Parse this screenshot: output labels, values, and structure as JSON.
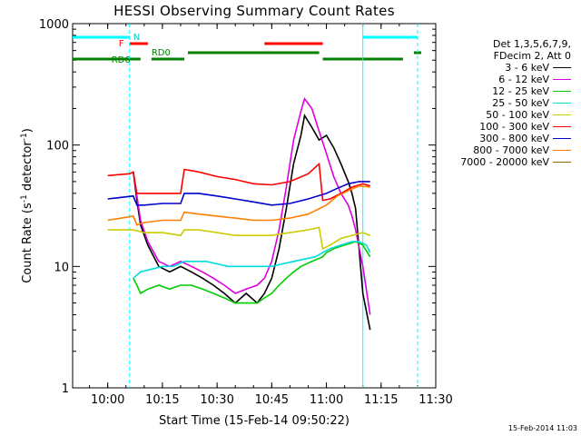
{
  "chart_data": {
    "type": "line",
    "title": "HESSI Observing Summary Count Rates",
    "xlabel": "Start Time (15-Feb-14 09:50:22)",
    "ylabel": "Count Rate (s",
    "ylabel_sup": "-1",
    "ylabel_unit": " detector",
    "ylabel_sup2": "-1",
    "ylabel_close": ")",
    "yscale": "log",
    "ylim": [
      1,
      1000
    ],
    "xlim": [
      "09:50:22",
      "11:30:00"
    ],
    "x_ticks": [
      "10:00",
      "10:15",
      "10:30",
      "10:45",
      "11:00",
      "11:15",
      "11:30"
    ],
    "y_ticks": [
      "1",
      "10",
      "100",
      "1000"
    ],
    "legend_header": [
      "Det 1,3,5,6,7,9,",
      "FDecim 2, Att 0"
    ],
    "legend_placement": "right",
    "series": [
      {
        "name": "3 - 6 keV",
        "color": "#000000",
        "x": [
          "10:07",
          "10:08",
          "10:09",
          "10:11",
          "10:14",
          "10:17",
          "10:20",
          "10:23",
          "10:26",
          "10:29",
          "10:32",
          "10:35",
          "10:38",
          "10:41",
          "10:43",
          "10:45",
          "10:47",
          "10:49",
          "10:51",
          "10:53",
          "10:54",
          "10:56",
          "10:58",
          "11:00",
          "11:02",
          "11:04",
          "11:06",
          "11:07",
          "11:08",
          "11:10",
          "11:12"
        ],
        "y": [
          60,
          35,
          22,
          15,
          10,
          9,
          10,
          9,
          8,
          7,
          6,
          5,
          6,
          5,
          6,
          8,
          14,
          30,
          70,
          120,
          175,
          140,
          110,
          120,
          95,
          70,
          50,
          40,
          30,
          6,
          3
        ]
      },
      {
        "name": "6 - 12 keV",
        "color": "#dd00dd",
        "x": [
          "10:07",
          "10:08",
          "10:09",
          "10:11",
          "10:14",
          "10:17",
          "10:20",
          "10:23",
          "10:26",
          "10:29",
          "10:32",
          "10:35",
          "10:38",
          "10:41",
          "10:43",
          "10:45",
          "10:47",
          "10:49",
          "10:51",
          "10:53",
          "10:54",
          "10:56",
          "10:58",
          "11:00",
          "11:02",
          "11:04",
          "11:06",
          "11:07",
          "11:08",
          "11:10",
          "11:12"
        ],
        "y": [
          60,
          38,
          24,
          16,
          11,
          10,
          11,
          10,
          9,
          8,
          7,
          6,
          6.5,
          7,
          8,
          11,
          20,
          45,
          110,
          190,
          240,
          200,
          130,
          85,
          55,
          40,
          32,
          26,
          20,
          10,
          4
        ]
      },
      {
        "name": "12 - 25 keV",
        "color": "#00cc00",
        "x": [
          "10:07",
          "10:08",
          "10:09",
          "10:11",
          "10:14",
          "10:17",
          "10:20",
          "10:23",
          "10:26",
          "10:29",
          "10:32",
          "10:35",
          "10:38",
          "10:41",
          "10:43",
          "10:45",
          "10:47",
          "10:49",
          "10:51",
          "10:53",
          "10:56",
          "10:59",
          "11:00",
          "11:02",
          "11:05",
          "11:08",
          "11:10",
          "11:12"
        ],
        "y": [
          8,
          7,
          6,
          6.5,
          7,
          6.5,
          7,
          7,
          6.5,
          6,
          5.5,
          5,
          5,
          5,
          5.5,
          6,
          7,
          8,
          9,
          10,
          11,
          12,
          13,
          14,
          15,
          16,
          15,
          12
        ]
      },
      {
        "name": "25 - 50 keV",
        "color": "#00dddd",
        "x": [
          "10:07",
          "10:09",
          "10:12",
          "10:15",
          "10:18",
          "10:21",
          "10:24",
          "10:27",
          "10:30",
          "10:33",
          "10:36",
          "10:39",
          "10:42",
          "10:45",
          "10:48",
          "10:51",
          "10:54",
          "10:57",
          "10:59",
          "11:01",
          "11:04",
          "11:07",
          "11:09",
          "11:11",
          "11:12"
        ],
        "y": [
          8,
          9,
          9.5,
          10,
          10,
          11,
          11,
          11,
          10.5,
          10,
          10,
          10,
          10,
          10,
          10.5,
          11,
          11.5,
          12,
          13,
          14,
          15,
          16,
          16,
          15,
          13
        ]
      },
      {
        "name": "50 - 100 keV",
        "color": "#cccc00",
        "x": [
          "10:00",
          "10:07",
          "10:10",
          "10:15",
          "10:20",
          "10:21",
          "10:25",
          "10:30",
          "10:35",
          "10:40",
          "10:45",
          "10:50",
          "10:55",
          "10:58",
          "10:59",
          "11:01",
          "11:04",
          "11:07",
          "11:10",
          "11:12"
        ],
        "y": [
          20,
          20,
          19,
          19,
          18,
          20,
          20,
          19,
          18,
          18,
          18,
          19,
          20,
          21,
          14,
          15,
          17,
          18,
          19,
          18
        ]
      },
      {
        "name": "100 - 300 keV",
        "color": "#ff0000",
        "x": [
          "10:00",
          "10:06",
          "10:07",
          "10:08",
          "10:10",
          "10:15",
          "10:20",
          "10:21",
          "10:25",
          "10:30",
          "10:35",
          "10:40",
          "10:45",
          "10:50",
          "10:55",
          "10:58",
          "10:59",
          "11:01",
          "11:04",
          "11:07",
          "11:10",
          "11:12"
        ],
        "y": [
          56,
          58,
          60,
          40,
          40,
          40,
          40,
          63,
          60,
          55,
          52,
          48,
          47,
          50,
          58,
          70,
          35,
          36,
          40,
          45,
          48,
          46
        ]
      },
      {
        "name": "300 - 800 keV",
        "color": "#0000cc",
        "x": [
          "10:00",
          "10:07",
          "10:08",
          "10:10",
          "10:15",
          "10:20",
          "10:21",
          "10:25",
          "10:30",
          "10:35",
          "10:40",
          "10:45",
          "10:50",
          "10:55",
          "11:00",
          "11:03",
          "11:06",
          "11:09",
          "11:12"
        ],
        "y": [
          36,
          38,
          32,
          32,
          33,
          33,
          40,
          40,
          38,
          36,
          34,
          32,
          33,
          36,
          40,
          44,
          48,
          50,
          50
        ]
      },
      {
        "name": "800 - 7000 keV",
        "color": "#ff7f00",
        "x": [
          "10:00",
          "10:07",
          "10:08",
          "10:10",
          "10:15",
          "10:20",
          "10:21",
          "10:25",
          "10:30",
          "10:35",
          "10:40",
          "10:45",
          "10:50",
          "10:55",
          "11:00",
          "11:03",
          "11:06",
          "11:09",
          "11:12"
        ],
        "y": [
          24,
          26,
          22,
          23,
          24,
          24,
          28,
          27,
          26,
          25,
          24,
          24,
          25,
          27,
          32,
          38,
          42,
          46,
          45
        ]
      },
      {
        "name": "7000 - 20000 keV",
        "color": "#996600",
        "x": [],
        "y": []
      }
    ],
    "annotations": {
      "n_label": "N",
      "f_label": "F",
      "rd0_label": "RD0",
      "rd6_label": "RD6",
      "bars": [
        {
          "label": "night",
          "color": "#00ffff",
          "segments": [
            [
              "09:50:22",
              "10:06"
            ],
            [
              "11:10",
              "11:25"
            ]
          ]
        },
        {
          "label": "flare",
          "color": "#ff0000",
          "segments": [
            [
              "10:06",
              "10:11"
            ],
            [
              "10:43",
              "10:59"
            ]
          ]
        },
        {
          "label": "rd0",
          "color": "#008000",
          "segments": [
            [
              "10:22",
              "10:58"
            ],
            [
              "11:24",
              "11:26"
            ]
          ]
        },
        {
          "label": "rd6",
          "color": "#008000",
          "segments": [
            [
              "09:50:22",
              "10:09"
            ],
            [
              "10:12",
              "10:21"
            ],
            [
              "10:59",
              "11:21"
            ]
          ]
        }
      ],
      "vlines": [
        {
          "x": "10:06",
          "color": "#00ffff",
          "style": "dashed"
        },
        {
          "x": "11:10",
          "color": "#00ffff",
          "style": "solid"
        },
        {
          "x": "11:25",
          "color": "#00ffff",
          "style": "dashed"
        }
      ]
    }
  },
  "timestamp": "15-Feb-2014 11:03"
}
